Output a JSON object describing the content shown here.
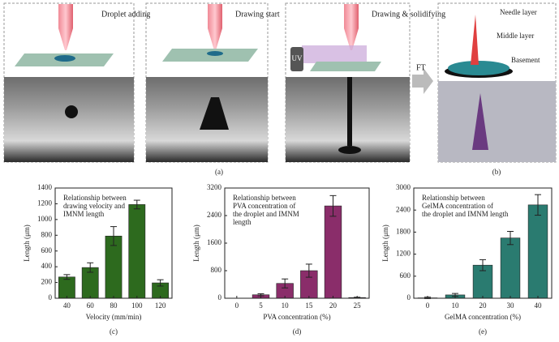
{
  "diagram": {
    "steps": [
      "Droplet adding",
      "Drawing start",
      "Drawing & solidifying"
    ],
    "uv": "UV",
    "ft": "FT",
    "layers": [
      "Needle layer",
      "Middle layer",
      "Basement"
    ],
    "captions": [
      "(a)",
      "(b)"
    ]
  },
  "chart_data": [
    {
      "type": "bar",
      "title_lines": [
        "Relationship between",
        "drawing velocity and",
        "IMNM length"
      ],
      "xlabel": "Velocity (mm/min)",
      "ylabel": "Length (μm)",
      "caption": "(c)",
      "color": "#2d6a1e",
      "categories": [
        "40",
        "60",
        "80",
        "100",
        "120"
      ],
      "values": [
        270,
        390,
        790,
        1190,
        195
      ],
      "errors": [
        30,
        60,
        120,
        55,
        40
      ],
      "ylim": [
        0,
        1400
      ],
      "yticks": [
        0,
        200,
        400,
        600,
        800,
        1000,
        1200,
        1400
      ]
    },
    {
      "type": "bar",
      "title_lines": [
        "Relationship between",
        "PVA concentration of",
        "the droplet and IMNM",
        "length"
      ],
      "xlabel": "PVA concentration (%)",
      "ylabel": "Length (μm)",
      "caption": "(d)",
      "color": "#8a2d6a",
      "categories": [
        "0",
        "5",
        "10",
        "15",
        "20",
        "25"
      ],
      "values": [
        0,
        100,
        430,
        800,
        2680,
        20
      ],
      "errors": [
        0,
        30,
        130,
        190,
        300,
        10
      ],
      "ylim": [
        0,
        3200
      ],
      "yticks": [
        0,
        800,
        1600,
        2400,
        3200
      ]
    },
    {
      "type": "bar",
      "title_lines": [
        "Relationship between",
        "GelMA concentration of",
        "the droplet and IMNM length"
      ],
      "xlabel": "GelMA concentration (%)",
      "ylabel": "Length (μm)",
      "caption": "(e)",
      "color": "#2a7b70",
      "categories": [
        "0",
        "10",
        "20",
        "30",
        "40"
      ],
      "values": [
        10,
        90,
        900,
        1640,
        2540
      ],
      "errors": [
        20,
        40,
        150,
        180,
        280
      ],
      "ylim": [
        0,
        3000
      ],
      "yticks": [
        0,
        600,
        1200,
        1800,
        2400,
        3000
      ]
    }
  ]
}
